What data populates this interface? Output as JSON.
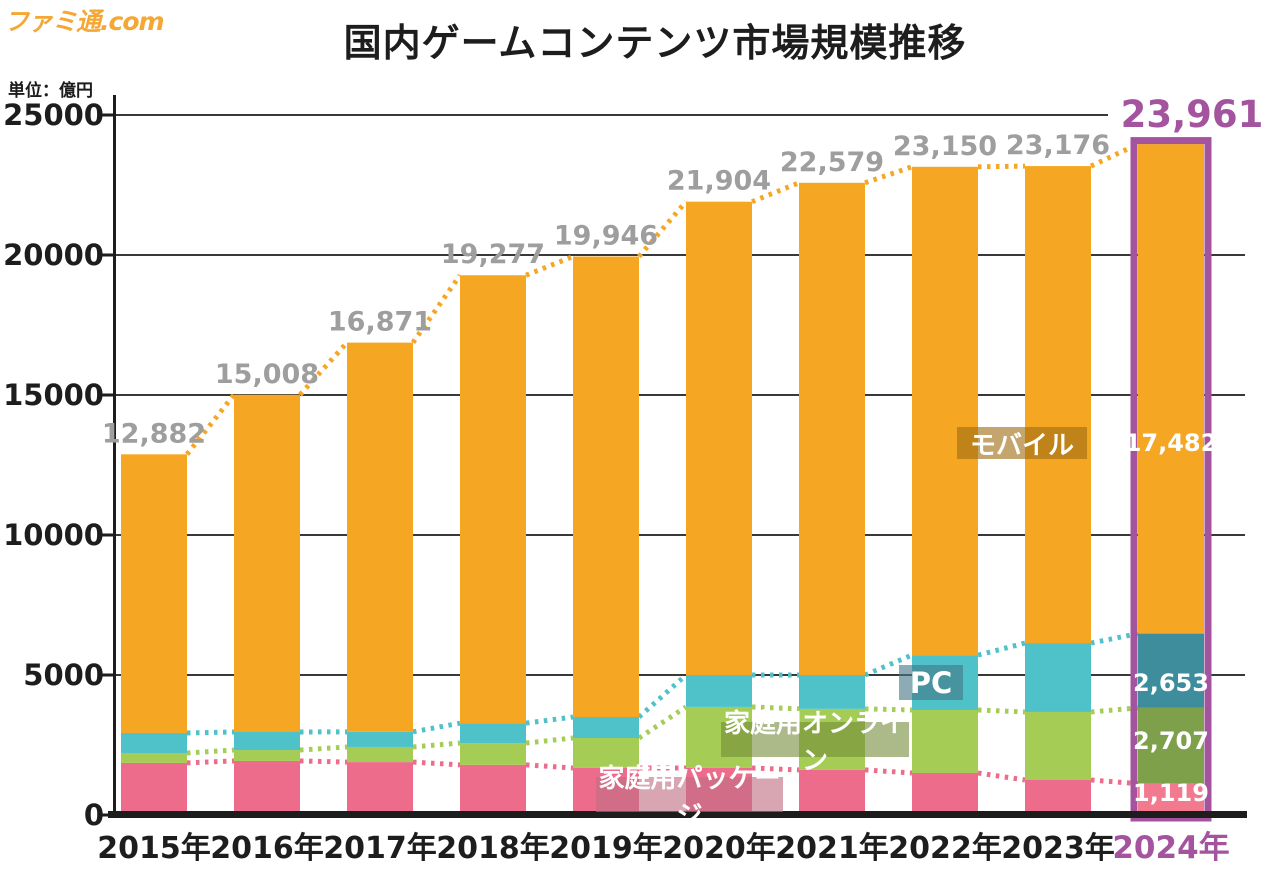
{
  "page": {
    "logo": "ファミ通.com",
    "title": "国内ゲームコンテンツ市場規模推移",
    "unit_label": "単位：億円"
  },
  "overlay_labels": {
    "mobile": "モバイル",
    "pc": "PC",
    "console_online": "家庭用オンライン",
    "console_package": "家庭用パッケージ"
  },
  "chart_data": {
    "type": "bar",
    "stacked": true,
    "title": "国内ゲームコンテンツ市場規模推移",
    "unit": "億円",
    "categories": [
      "2015年",
      "2016年",
      "2017年",
      "2018年",
      "2019年",
      "2020年",
      "2021年",
      "2022年",
      "2023年",
      "2024年"
    ],
    "totals": [
      12882,
      15008,
      16871,
      19277,
      19946,
      21904,
      22579,
      23150,
      23176,
      23961
    ],
    "totals_display": [
      "12,882",
      "15,008",
      "16,871",
      "19,277",
      "19,946",
      "21,904",
      "22,579",
      "23,150",
      "23,176",
      "23,961"
    ],
    "ylim": [
      0,
      25000
    ],
    "y_ticks": [
      0,
      5000,
      10000,
      15000,
      20000,
      25000
    ],
    "grid": true,
    "legend_position": "inline-overlay",
    "series": [
      {
        "name": "家庭用パッケージ",
        "color": "#ED6C8C",
        "color_2024": "#F2798E",
        "label_2024": "1,119",
        "values": [
          1860,
          1930,
          1890,
          1790,
          1680,
          1680,
          1610,
          1500,
          1250,
          1119
        ]
      },
      {
        "name": "家庭用オンライン",
        "color": "#A5CD55",
        "color_2024": "#7FA04B",
        "label_2024": "2,707",
        "values": [
          355,
          390,
          540,
          780,
          1070,
          2180,
          2180,
          2250,
          2430,
          2707
        ]
      },
      {
        "name": "PC",
        "color": "#4EC1C9",
        "color_2024": "#3E8D9D",
        "label_2024": "2,653",
        "values": [
          715,
          645,
          540,
          710,
          750,
          1140,
          1210,
          1960,
          2460,
          2653
        ]
      },
      {
        "name": "モバイル",
        "color": "#F5A623",
        "color_2024": "#F5A623",
        "label_2024": "17,482",
        "values": [
          9952,
          12043,
          13901,
          15997,
          16446,
          16904,
          17579,
          17440,
          17036,
          17482
        ]
      }
    ],
    "highlight": {
      "category": "2024年",
      "color": "#A4549E",
      "total_display": "23,961"
    },
    "colors": {
      "axis": "#1d1d1d",
      "total_label": "#9E9E9E",
      "highlight": "#A4549E",
      "in_bar_label": "#FFFFFF"
    },
    "note": "Totals and 2024 segment values are printed on the chart; 2015-2023 segment values estimated from bar geometry"
  }
}
